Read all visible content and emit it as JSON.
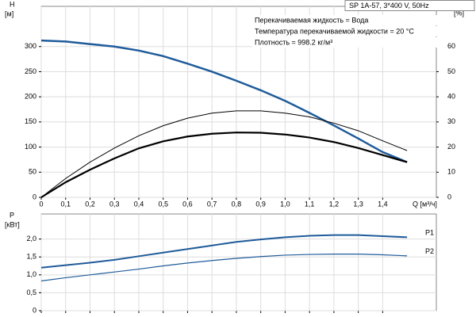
{
  "chart_data": [
    {
      "type": "line",
      "title": "SP 1A-57, 3*400 V, 50Hz",
      "annotations": [
        "Перекачиваемая жидкость = Вода",
        "Температура перекачиваемой жидкости = 20 °C",
        "Плотность = 998.2 кг/м³"
      ],
      "y_label": "H",
      "y_unit": "[м]",
      "y2_label": "eta",
      "y2_unit": "[%]",
      "x_label": "Q [м³/ч]",
      "x": [
        0,
        0.1,
        0.2,
        0.3,
        0.4,
        0.5,
        0.6,
        0.7,
        0.8,
        0.9,
        1.0,
        1.1,
        1.2,
        1.3,
        1.4,
        1.5
      ],
      "xlim": [
        0,
        1.62
      ],
      "xticks": [
        0,
        {
          "value": 0.1,
          "label": "0,1"
        },
        {
          "value": 0.2,
          "label": "0,2"
        },
        {
          "value": 0.3,
          "label": "0,3"
        },
        {
          "value": 0.4,
          "label": "0,4"
        },
        {
          "value": 0.5,
          "label": "0,5"
        },
        {
          "value": 0.6,
          "label": "0,6"
        },
        {
          "value": 0.7,
          "label": "0,7"
        },
        {
          "value": 0.8,
          "label": "0,8"
        },
        {
          "value": 0.9,
          "label": "0,9"
        },
        {
          "value": 1.0,
          "label": "1,0"
        },
        {
          "value": 1.1,
          "label": "1,1"
        },
        {
          "value": 1.2,
          "label": "1,2"
        },
        {
          "value": 1.3,
          "label": "1,3"
        },
        {
          "value": 1.4,
          "label": "1,4"
        }
      ],
      "ylim": [
        0,
        380
      ],
      "yticks": [
        0,
        50,
        100,
        150,
        200,
        250,
        300
      ],
      "y2lim": [
        0,
        76
      ],
      "y2ticks": [
        0,
        10,
        20,
        30,
        40,
        50,
        60
      ],
      "grid": true,
      "series": [
        {
          "color": "#1f5b9a",
          "line_width": 2.5,
          "values": [
            312,
            310,
            305,
            300,
            292,
            281,
            266,
            250,
            232,
            213,
            192,
            168,
            143,
            117,
            90,
            70
          ]
        },
        {
          "color": "#000000",
          "line_width": 1,
          "axis": "y2",
          "values": [
            0,
            7.5,
            14,
            19.6,
            24.5,
            28.5,
            31.5,
            33.5,
            34.4,
            34.4,
            33.5,
            32,
            29.5,
            26.5,
            22.5,
            18.6
          ]
        },
        {
          "color": "#000000",
          "line_width": 2.2,
          "axis": "y2",
          "values": [
            0,
            6,
            11,
            15.5,
            19.5,
            22.3,
            24.2,
            25.3,
            25.8,
            25.7,
            25,
            23.8,
            22,
            19.6,
            16.8,
            14
          ]
        }
      ]
    },
    {
      "type": "line",
      "y_label": "P",
      "y_unit": "[кВт]",
      "x": [
        0,
        0.1,
        0.2,
        0.3,
        0.4,
        0.5,
        0.6,
        0.7,
        0.8,
        0.9,
        1.0,
        1.1,
        1.2,
        1.3,
        1.4,
        1.5
      ],
      "xlim": [
        0,
        1.62
      ],
      "xticks": [
        0,
        0.1,
        0.2,
        0.3,
        0.4,
        0.5,
        0.6,
        0.7,
        0.8,
        0.9,
        1.0,
        1.1,
        1.2,
        1.3,
        1.4
      ],
      "ylim": [
        0,
        2.7
      ],
      "yticks": [
        0,
        {
          "value": 0.5,
          "label": "0,5"
        },
        {
          "value": 1.0,
          "label": "1,0"
        },
        {
          "value": 1.5,
          "label": "1,5"
        },
        {
          "value": 2.0,
          "label": "2,0"
        }
      ],
      "grid": true,
      "series": [
        {
          "name": "P1",
          "color": "#1f5b9a",
          "line_width": 2,
          "values": [
            1.2,
            1.27,
            1.34,
            1.42,
            1.52,
            1.62,
            1.72,
            1.82,
            1.92,
            1.99,
            2.05,
            2.09,
            2.11,
            2.11,
            2.08,
            2.05
          ]
        },
        {
          "name": "P2",
          "color": "#1f5b9a",
          "line_width": 1.2,
          "values": [
            0.83,
            0.92,
            1.0,
            1.08,
            1.16,
            1.25,
            1.33,
            1.4,
            1.46,
            1.51,
            1.55,
            1.57,
            1.58,
            1.58,
            1.56,
            1.53
          ]
        }
      ]
    }
  ]
}
